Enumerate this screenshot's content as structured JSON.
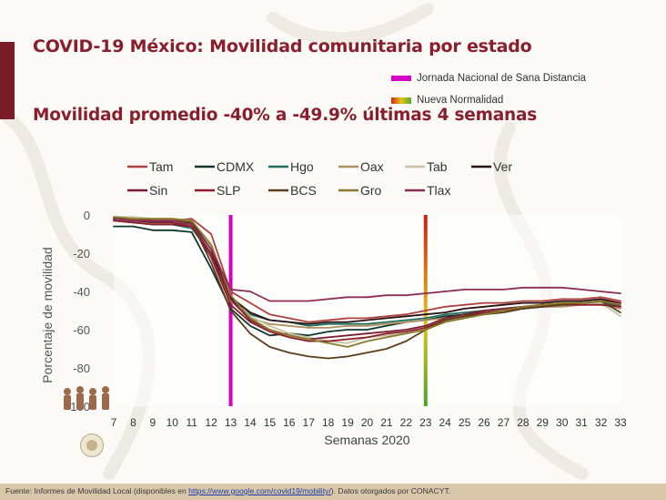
{
  "header": {
    "title": "COVID-19 México: Movilidad comunitaria por estado",
    "subtitle": "Movilidad promedio -40% a -49.9% últimas 4 semanas"
  },
  "markers": {
    "jornada_label": "Jornada Nacional de Sana Distancia",
    "nueva_label": "Nueva Normalidad"
  },
  "footer": {
    "prefix": "Fuente: Informes de Movilidad Local (disponibles en ",
    "link": "https://www.google.com/covid19/mobility/",
    "suffix": ").  Datos otorgados  por CONACYT."
  },
  "chart_data": {
    "type": "line",
    "xlabel": "Semanas 2020",
    "ylabel": "Porcentaje de movilidad",
    "xlim": [
      7,
      33
    ],
    "ylim": [
      -100,
      0
    ],
    "x_ticks": [
      7,
      8,
      9,
      10,
      11,
      12,
      13,
      14,
      15,
      16,
      17,
      18,
      19,
      20,
      21,
      22,
      23,
      24,
      25,
      26,
      27,
      28,
      29,
      30,
      31,
      32,
      33
    ],
    "y_ticks": [
      0,
      -20,
      -40,
      -60,
      -80,
      -100
    ],
    "vertical_markers": [
      {
        "x": 13,
        "label": "Jornada Nacional de Sana Distancia",
        "color": "#d400c8"
      },
      {
        "x": 23,
        "label": "Nueva Normalidad",
        "color": "gradient"
      }
    ],
    "x": [
      7,
      8,
      9,
      10,
      11,
      12,
      13,
      14,
      15,
      16,
      17,
      18,
      19,
      20,
      21,
      22,
      23,
      24,
      25,
      26,
      27,
      28,
      29,
      30,
      31,
      32,
      33
    ],
    "series": [
      {
        "name": "Tam",
        "color": "#b0403f",
        "values": [
          -2,
          -2,
          -3,
          -3,
          -2,
          -10,
          -40,
          -46,
          -52,
          -54,
          -56,
          -55,
          -54,
          -54,
          -53,
          -52,
          -50,
          -48,
          -47,
          -46,
          -46,
          -45,
          -45,
          -44,
          -44,
          -43,
          -45
        ]
      },
      {
        "name": "CDMX",
        "color": "#10362f",
        "values": [
          -6,
          -6,
          -8,
          -8,
          -9,
          -28,
          -49,
          -58,
          -63,
          -62,
          -63,
          -61,
          -60,
          -60,
          -58,
          -56,
          -55,
          -53,
          -52,
          -51,
          -50,
          -49,
          -48,
          -47,
          -46,
          -46,
          -48
        ]
      },
      {
        "name": "Hgo",
        "color": "#1f6e5e",
        "values": [
          -3,
          -4,
          -5,
          -5,
          -7,
          -20,
          -44,
          -52,
          -55,
          -56,
          -58,
          -57,
          -57,
          -57,
          -56,
          -55,
          -54,
          -52,
          -51,
          -50,
          -49,
          -48,
          -47,
          -47,
          -46,
          -46,
          -47
        ]
      },
      {
        "name": "Oax",
        "color": "#b09262",
        "values": [
          -2,
          -3,
          -4,
          -4,
          -5,
          -22,
          -45,
          -54,
          -57,
          -58,
          -59,
          -59,
          -58,
          -58,
          -57,
          -56,
          -55,
          -54,
          -53,
          -51,
          -50,
          -49,
          -48,
          -48,
          -47,
          -47,
          -49
        ]
      },
      {
        "name": "Tab",
        "color": "#c7c3a2",
        "values": [
          -1,
          -1,
          -2,
          -2,
          -3,
          -15,
          -42,
          -53,
          -58,
          -62,
          -64,
          -66,
          -67,
          -64,
          -63,
          -62,
          -60,
          -56,
          -54,
          -52,
          -50,
          -49,
          -48,
          -47,
          -47,
          -46,
          -53
        ]
      },
      {
        "name": "Ver",
        "color": "#2a1114",
        "values": [
          -2,
          -3,
          -3,
          -3,
          -4,
          -18,
          -43,
          -51,
          -55,
          -56,
          -57,
          -56,
          -56,
          -55,
          -54,
          -53,
          -52,
          -51,
          -49,
          -48,
          -47,
          -46,
          -46,
          -45,
          -45,
          -44,
          -46
        ]
      },
      {
        "name": "Sin",
        "color": "#7a1d33",
        "values": [
          -2,
          -3,
          -4,
          -4,
          -6,
          -20,
          -44,
          -55,
          -60,
          -63,
          -65,
          -64,
          -63,
          -62,
          -61,
          -60,
          -58,
          -54,
          -52,
          -50,
          -49,
          -48,
          -47,
          -46,
          -46,
          -45,
          -46
        ]
      },
      {
        "name": "SLP",
        "color": "#8e1d2c",
        "values": [
          -3,
          -4,
          -5,
          -5,
          -6,
          -22,
          -47,
          -56,
          -61,
          -64,
          -66,
          -66,
          -65,
          -64,
          -62,
          -61,
          -59,
          -55,
          -53,
          -51,
          -50,
          -49,
          -48,
          -47,
          -47,
          -47,
          -48
        ]
      },
      {
        "name": "BCS",
        "color": "#5c3d1e",
        "values": [
          -2,
          -2,
          -3,
          -3,
          -4,
          -25,
          -50,
          -62,
          -69,
          -72,
          -74,
          -75,
          -74,
          -72,
          -70,
          -66,
          -60,
          -55,
          -53,
          -52,
          -51,
          -49,
          -48,
          -47,
          -46,
          -45,
          -51
        ]
      },
      {
        "name": "Gro",
        "color": "#8a7a2a",
        "values": [
          -1,
          -2,
          -2,
          -2,
          -3,
          -16,
          -42,
          -54,
          -60,
          -63,
          -65,
          -67,
          -69,
          -66,
          -64,
          -62,
          -60,
          -56,
          -54,
          -52,
          -50,
          -48,
          -47,
          -46,
          -46,
          -45,
          -47
        ]
      },
      {
        "name": "Tlax",
        "color": "#8c2d55",
        "values": [
          -2,
          -3,
          -3,
          -3,
          -5,
          -18,
          -39,
          -40,
          -45,
          -45,
          -45,
          -44,
          -43,
          -43,
          -42,
          -42,
          -41,
          -40,
          -39,
          -39,
          -39,
          -38,
          -38,
          -38,
          -39,
          -40,
          -41
        ]
      }
    ]
  }
}
